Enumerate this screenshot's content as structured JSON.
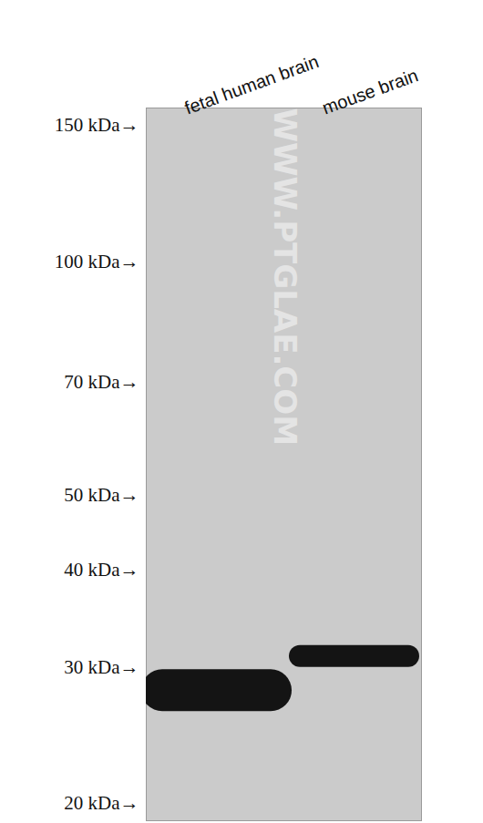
{
  "chart_data": {
    "type": "band",
    "categories": [
      "fetal human brain",
      "mouse brain"
    ],
    "values": [
      28,
      31
    ],
    "color": "#141414",
    "log": "y",
    "ylim": [
      19,
      158
    ],
    "yticks": [
      {
        "value": 150,
        "label": "150 kDa→"
      },
      {
        "value": 100,
        "label": "100 kDa→"
      },
      {
        "value": 70,
        "label": "70 kDa→"
      },
      {
        "value": 50,
        "label": "50 kDa→"
      },
      {
        "value": 40,
        "label": "40 kDa→"
      },
      {
        "value": 30,
        "label": "30 kDa→"
      },
      {
        "value": 20,
        "label": "20 kDa→"
      }
    ],
    "watermark": "WWW.PTGLAE.COM"
  }
}
